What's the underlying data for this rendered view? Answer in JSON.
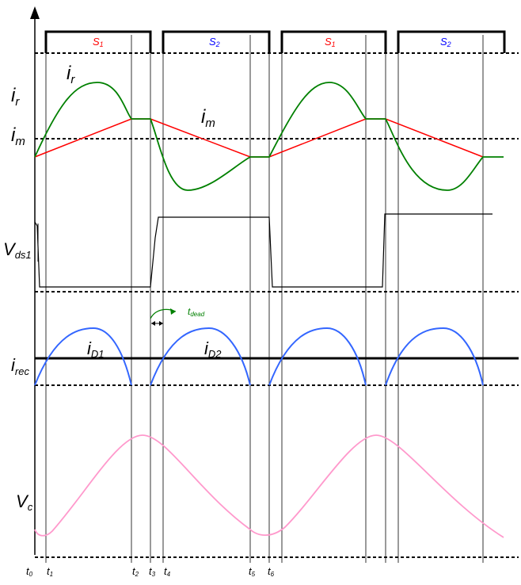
{
  "colors": {
    "s1": "#ff0000",
    "s2": "#0000ff",
    "ir": "#008000",
    "im": "#ff0000",
    "vds": "#000000",
    "idiode": "#3366ff",
    "vc": "#ff99cc",
    "dead": "#008000"
  },
  "gates": [
    "S",
    "S",
    "S",
    "S"
  ],
  "gate_subs": [
    "1",
    "2",
    "1",
    "2"
  ],
  "signals": {
    "ir": {
      "main": "i",
      "sub": "r"
    },
    "ir_curve": {
      "main": "i",
      "sub": "r"
    },
    "im": {
      "main": "i",
      "sub": "m"
    },
    "im_curve": {
      "main": "i",
      "sub": "m"
    },
    "vds": {
      "main": "V",
      "sub": "ds1"
    },
    "irec": {
      "main": "i",
      "sub": "rec"
    },
    "id1": {
      "main": "i",
      "sub": "D1"
    },
    "id2": {
      "main": "i",
      "sub": "D2"
    },
    "vc": {
      "main": "V",
      "sub": "c"
    }
  },
  "dead": {
    "main": "t",
    "sub": "dead"
  },
  "time_labels": [
    "t",
    "t",
    "t",
    "t",
    "t",
    "t",
    "t"
  ],
  "time_subs": [
    "0",
    "1",
    "2",
    "3",
    "4",
    "5",
    "6"
  ]
}
